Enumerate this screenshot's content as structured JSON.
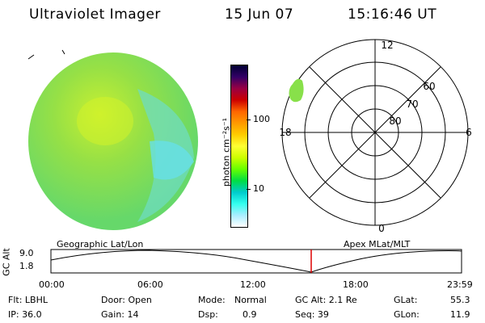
{
  "header": {
    "title": "Ultraviolet Imager",
    "date": "15 Jun 07",
    "time": "15:16:46 UT"
  },
  "colorbar": {
    "label": "photon cm⁻²s⁻¹",
    "ticks": [
      "100",
      "10"
    ],
    "colors": [
      "#000033",
      "#330066",
      "#990044",
      "#cc0000",
      "#ff6600",
      "#ff9900",
      "#ffcc00",
      "#ffff33",
      "#ccff00",
      "#66ff00",
      "#00dd44",
      "#00cccc",
      "#33ffee",
      "#aaeeff",
      "#ffffff"
    ],
    "scale": "log"
  },
  "polar_grid": {
    "mlat_labels": [
      "80",
      "70",
      "60"
    ],
    "mlt_labels": [
      "12",
      "18",
      "6",
      "0"
    ]
  },
  "timeline": {
    "left_label": "Geographic Lat/Lon",
    "right_label": "Apex MLat/MLT",
    "y_title": "GC Alt",
    "y_ticks": [
      "9.0",
      "1.8"
    ],
    "x_ticks": [
      "00:00",
      "06:00",
      "12:00",
      "18:00",
      "23:59"
    ],
    "current_time_marker": "15:16:46"
  },
  "footer": {
    "flt": "Flt: LBHL",
    "ip": "IP: 36.0",
    "door": "Door: Open",
    "gain": "Gain: 14",
    "mode_label": "Mode:",
    "mode_value": "Normal",
    "dsp_label": "Dsp:",
    "dsp_value": "0.9",
    "gcalt": "GC Alt: 2.1 Re",
    "seq": "Seq: 39",
    "glat_label": "GLat:",
    "glat_value": "55.3",
    "glon_label": "GLon:",
    "glon_value": "11.9"
  },
  "colors": {
    "image_green": "#88e04a",
    "image_cyan": "#66e0d8",
    "time_marker": "#dd0000"
  }
}
